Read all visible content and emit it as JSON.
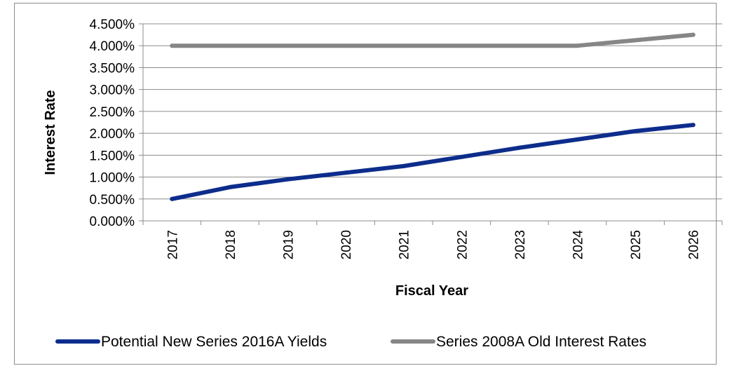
{
  "chart_data": {
    "type": "line",
    "title": "",
    "xlabel": "Fiscal Year",
    "ylabel": "Interest Rate",
    "categories": [
      "2017",
      "2018",
      "2019",
      "2020",
      "2021",
      "2022",
      "2023",
      "2024",
      "2025",
      "2026"
    ],
    "ylim": [
      0,
      4.5
    ],
    "y_ticks": [
      "0.000%",
      "0.500%",
      "1.000%",
      "1.500%",
      "2.000%",
      "2.500%",
      "3.000%",
      "3.500%",
      "4.000%",
      "4.500%"
    ],
    "grid": true,
    "legend_position": "bottom",
    "series": [
      {
        "name": "Potential New Series 2016A Yields",
        "color": "#0d2d8c",
        "values": [
          0.5,
          0.77,
          0.95,
          1.1,
          1.25,
          1.46,
          1.67,
          1.86,
          2.05,
          2.19
        ]
      },
      {
        "name": "Series 2008A Old Interest Rates",
        "color": "#868686",
        "values": [
          4.0,
          4.0,
          4.0,
          4.0,
          4.0,
          4.0,
          4.0,
          4.0,
          4.125,
          4.25
        ]
      }
    ]
  }
}
